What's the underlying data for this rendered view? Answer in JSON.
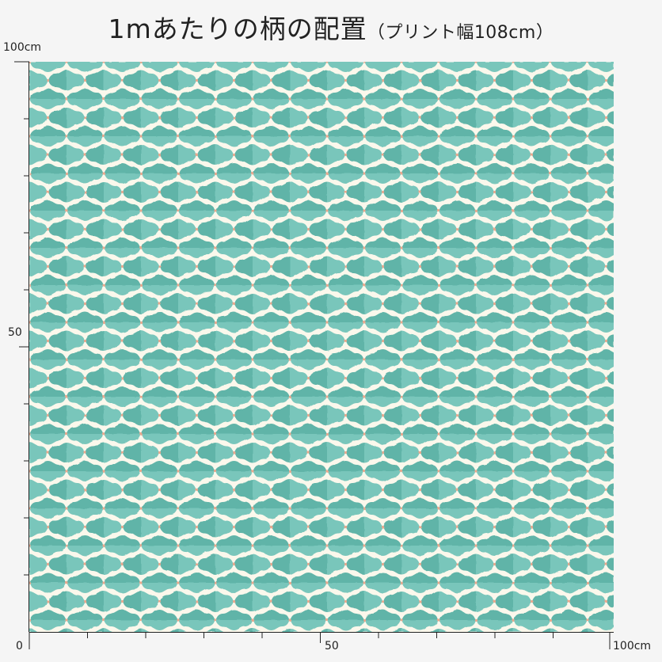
{
  "title": {
    "main": "1mあたりの柄の配置",
    "sub": "（プリント幅108cm）"
  },
  "axis_labels": {
    "y_top": "100cm",
    "y_mid": "50",
    "x_start": "0",
    "x_mid": "50",
    "x_end": "100cm"
  },
  "pattern": {
    "background_color": "#fbf8ec",
    "motif_color": "#63bdb3",
    "motif_color_dark": "#45a89c",
    "dot_color": "#e8a98f"
  }
}
